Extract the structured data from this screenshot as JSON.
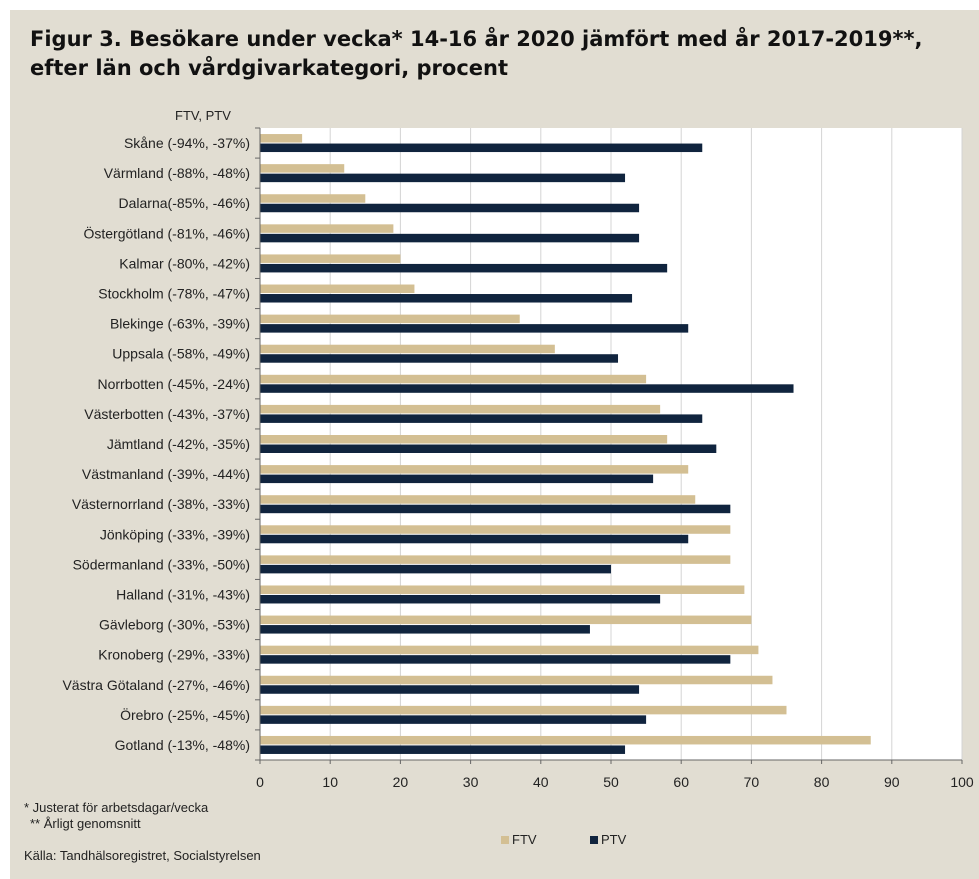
{
  "title": "Figur 3. Besökare under vecka* 14-16 år 2020 jämfört med år 2017-2019**, efter län och vårdgivarkategori, procent",
  "footnote1": "* Justerat för arbetsdagar/vecka",
  "footnote2": "** Årligt genomsnitt",
  "source": "Källa: Tandhälsoregistret, Socialstyrelsen",
  "colors": {
    "FTV": "#d3bf93",
    "PTV": "#10243e",
    "grid": "#d4d4d4",
    "plot_bg": "#ffffff"
  },
  "chart_data": {
    "type": "bar",
    "orientation": "horizontal",
    "ylabel": "FTV, PTV",
    "xlim": [
      0,
      100
    ],
    "xticks": [
      0,
      10,
      20,
      30,
      40,
      50,
      60,
      70,
      80,
      90,
      100
    ],
    "grid": "vertical",
    "legend_position": "bottom",
    "categories": [
      "Skåne (-94%, -37%)",
      "Värmland (-88%, -48%)",
      "Dalarna(-85%, -46%)",
      "Östergötland (-81%, -46%)",
      "Kalmar (-80%, -42%)",
      "Stockholm (-78%, -47%)",
      "Blekinge (-63%, -39%)",
      "Uppsala (-58%, -49%)",
      "Norrbotten (-45%, -24%)",
      "Västerbotten (-43%, -37%)",
      "Jämtland (-42%, -35%)",
      "Västmanland (-39%, -44%)",
      "Västernorrland (-38%, -33%)",
      "Jönköping (-33%, -39%)",
      "Södermanland (-33%, -50%)",
      "Halland (-31%, -43%)",
      "Gävleborg (-30%, -53%)",
      "Kronoberg (-29%, -33%)",
      "Västra Götaland (-27%, -46%)",
      "Örebro (-25%, -45%)",
      "Gotland (-13%, -48%)"
    ],
    "series": [
      {
        "name": "FTV",
        "values": [
          6,
          12,
          15,
          19,
          20,
          22,
          37,
          42,
          55,
          57,
          58,
          61,
          62,
          67,
          67,
          69,
          70,
          71,
          73,
          75,
          87
        ]
      },
      {
        "name": "PTV",
        "values": [
          63,
          52,
          54,
          54,
          58,
          53,
          61,
          51,
          76,
          63,
          65,
          56,
          67,
          61,
          50,
          57,
          47,
          67,
          54,
          55,
          52
        ]
      }
    ]
  }
}
